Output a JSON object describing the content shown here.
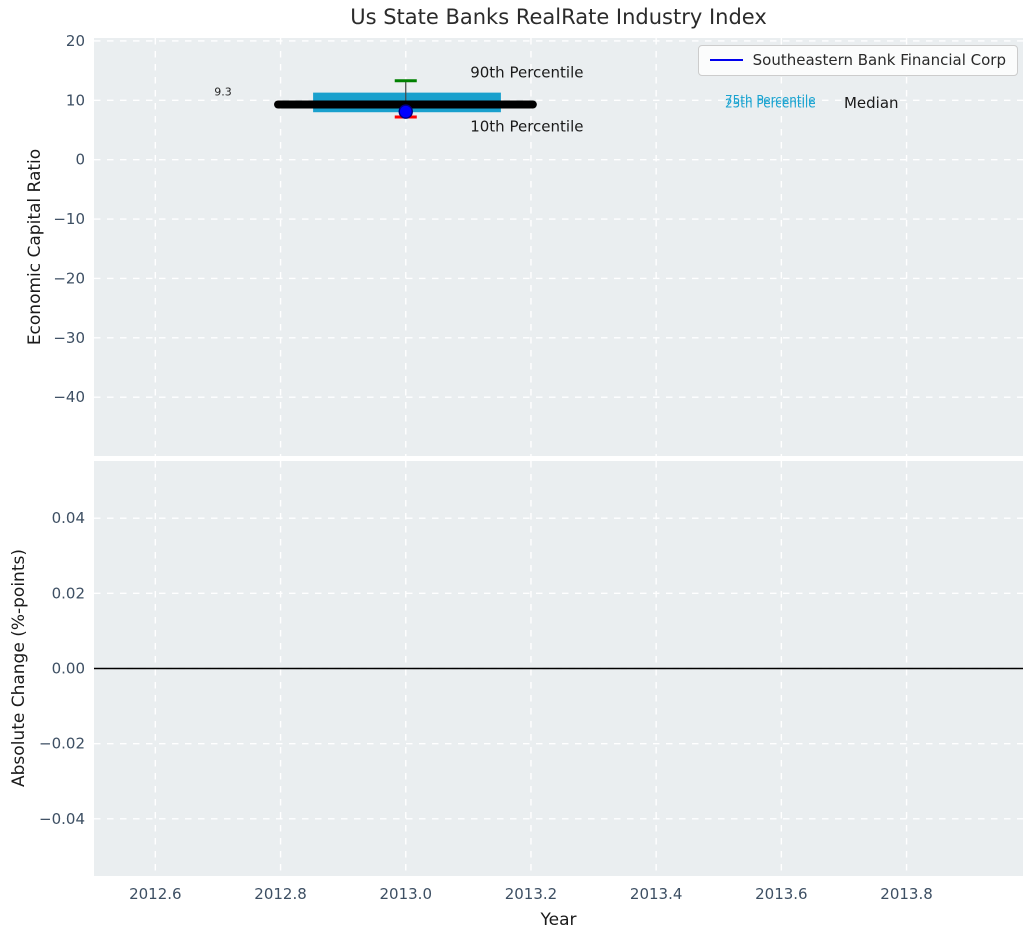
{
  "title": "Us State Banks RealRate Industry Index",
  "legend": {
    "label": "Southeastern Bank Financial Corp",
    "line_color": "#0000ee",
    "position": "upper right"
  },
  "colors": {
    "plot_bg": "#eaeef0",
    "grid": "#ffffff",
    "tick_label": "#3d4f63",
    "box_fill": "#19a0cd",
    "median_line": "#000000",
    "p90_cap": "#008000",
    "p10_cap": "#ff0000",
    "whisker": "#444444",
    "company_dot": "#0000ff",
    "company_dot_edge": "#000080",
    "zero_line": "#000000",
    "cyan_text": "#1aa3d0"
  },
  "chart_data": [
    {
      "type": "box",
      "ylabel": "Economic Capital Ratio",
      "xlim": [
        2012.502,
        2013.986
      ],
      "ylim": [
        -49.9,
        20.5
      ],
      "yticks": [
        20,
        10,
        0,
        -10,
        -20,
        -30,
        -40
      ],
      "ytick_labels": [
        "20",
        "10",
        "0",
        "−10",
        "−20",
        "−30",
        "−40"
      ],
      "xticks": [
        2012.6,
        2012.8,
        2013.0,
        2013.2,
        2013.4,
        2013.6,
        2013.8
      ],
      "grid": true,
      "box": {
        "x": 2013.0,
        "p90": 13.3,
        "p75": 11.3,
        "median": 9.3,
        "p25": 8.0,
        "p10": 7.2,
        "company_value": 8.1,
        "median_span": [
          2012.796,
          2013.203
        ],
        "box_span": [
          2012.852,
          2013.152
        ],
        "cap_halfwidth": 0.0176
      },
      "annotations": [
        {
          "text": "9.3",
          "x": 2012.708,
          "y": 11.4,
          "size": 11,
          "color": "#262626",
          "anchor": "middle"
        },
        {
          "text": "90th Percentile",
          "x": 2013.103,
          "y": 14.7,
          "size": 15,
          "color": "#1a1a1a",
          "anchor": "start"
        },
        {
          "text": "10th Percentile",
          "x": 2013.103,
          "y": 5.6,
          "size": 15,
          "color": "#1a1a1a",
          "anchor": "start"
        },
        {
          "text": "75th Percentile",
          "x": 2013.51,
          "y": 10.1,
          "size": 12,
          "color": "#1aa3d0",
          "anchor": "start"
        },
        {
          "text": "25th Percentile",
          "x": 2013.51,
          "y": 9.5,
          "size": 12,
          "color": "#1aa3d0",
          "anchor": "start"
        },
        {
          "text": "Median",
          "x": 2013.7,
          "y": 9.55,
          "size": 15,
          "color": "#1a1a1a",
          "anchor": "start"
        }
      ]
    },
    {
      "type": "line",
      "ylabel": "Absolute Change (%-points)",
      "xlabel": "Year",
      "xlim": [
        2012.502,
        2013.986
      ],
      "ylim": [
        -0.0552,
        0.0552
      ],
      "yticks": [
        0.04,
        0.02,
        0,
        -0.02,
        -0.04
      ],
      "ytick_labels": [
        "0.04",
        "0.02",
        "0.00",
        "−0.02",
        "−0.04"
      ],
      "xticks": [
        2012.6,
        2012.8,
        2013.0,
        2013.2,
        2013.4,
        2013.6,
        2013.8
      ],
      "xtick_labels": [
        "2012.6",
        "2012.8",
        "2013.0",
        "2013.2",
        "2013.4",
        "2013.6",
        "2013.8"
      ],
      "grid": true,
      "zero_line": 0,
      "series": []
    }
  ]
}
